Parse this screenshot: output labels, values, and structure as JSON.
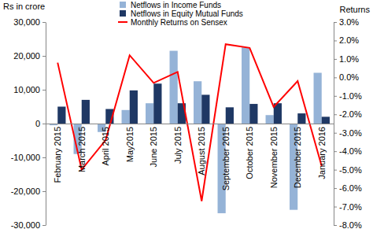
{
  "chart_data": {
    "type": "bar",
    "y_label": "Rs in crore",
    "y2_label": "Returns",
    "categories": [
      "February 2015",
      "March 2015",
      "April 2015",
      "May2015",
      "June 2015",
      "July 2015",
      "August 2015",
      "September 2015",
      "October 2015",
      "November 2015",
      "December 2015",
      "January 2016"
    ],
    "series": [
      {
        "name": "Netflows in Income Funds",
        "color": "#95B3D7",
        "values": [
          -500,
          -9000,
          -2500,
          4000,
          6000,
          21500,
          12500,
          -26500,
          22500,
          2500,
          -25500,
          15000
        ]
      },
      {
        "name": "Netflows in Equity Mutual Funds",
        "color": "#1F3864",
        "values": [
          5000,
          7000,
          4300,
          9800,
          11800,
          6000,
          8500,
          4800,
          5800,
          6000,
          3000,
          2000
        ]
      },
      {
        "name": "Monthly Returns on Sensex",
        "type": "line",
        "axis": "y2",
        "color": "#FF0000",
        "values": [
          0.8,
          -5.0,
          -3.4,
          1.2,
          -0.3,
          0.3,
          -6.7,
          1.8,
          1.6,
          -1.6,
          -0.2,
          -4.8
        ]
      }
    ],
    "ylim": [
      -30000,
      30000
    ],
    "yticks": [
      {
        "value": -30000,
        "label": "-30,000"
      },
      {
        "value": -20000,
        "label": "-20,000"
      },
      {
        "value": -10000,
        "label": "-10,000"
      },
      0,
      {
        "value": 10000,
        "label": "10,000"
      },
      {
        "value": 20000,
        "label": "20,000"
      },
      {
        "value": 30000,
        "label": "30,000"
      }
    ],
    "y2lim": [
      -8,
      3
    ],
    "y2ticks": [
      {
        "value": 3,
        "label": "3.0%"
      },
      {
        "value": 2,
        "label": "2.0%"
      },
      {
        "value": 1,
        "label": "1.0%"
      },
      {
        "value": 0,
        "label": "0.0%"
      },
      {
        "value": -1,
        "label": "-1.0%"
      },
      {
        "value": -2,
        "label": "-2.0%"
      },
      {
        "value": -3,
        "label": "-3.0%"
      },
      {
        "value": -4,
        "label": "-4.0%"
      },
      {
        "value": -5,
        "label": "-5.0%"
      },
      {
        "value": -6,
        "label": "-6.0%"
      },
      {
        "value": -7,
        "label": "-7.0%"
      },
      {
        "value": -8,
        "label": "-8.0%"
      }
    ],
    "legend": "top"
  }
}
